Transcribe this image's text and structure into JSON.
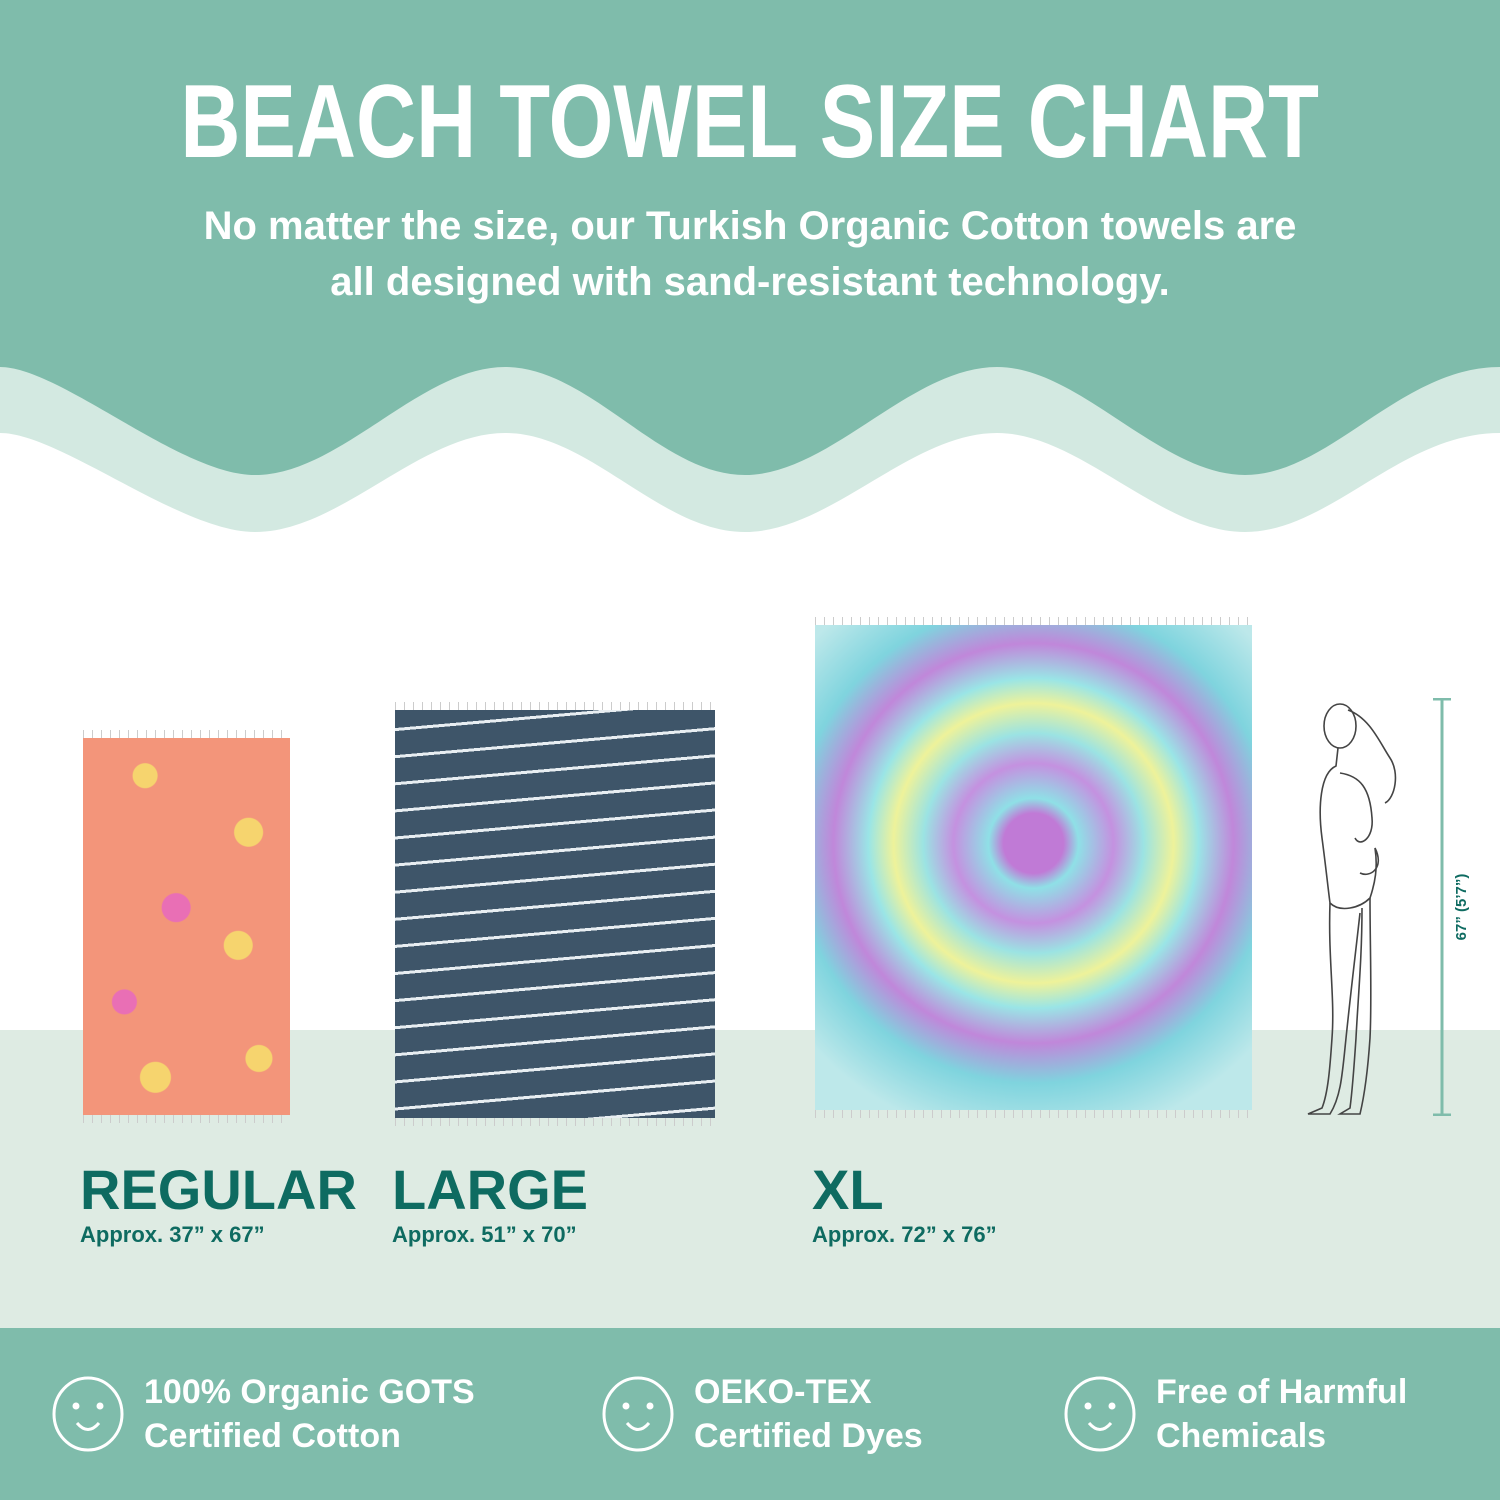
{
  "header": {
    "title": "BEACH TOWEL SIZE CHART",
    "subtitle_line1": "No matter the size, our Turkish Organic Cotton towels are",
    "subtitle_line2": "all designed with sand-resistant technology."
  },
  "sizes": [
    {
      "name": "REGULAR",
      "dimensions": "Approx. 37” x 67”"
    },
    {
      "name": "LARGE",
      "dimensions": "Approx. 51” x 70”"
    },
    {
      "name": "XL",
      "dimensions": "Approx. 72” x 76”"
    }
  ],
  "height_reference": {
    "label": "67” (5’7”)"
  },
  "features": [
    {
      "icon": "smiley-icon",
      "line1": "100% Organic GOTS",
      "line2": "Certified Cotton"
    },
    {
      "icon": "smiley-icon",
      "line1": "OEKO-TEX",
      "line2": "Certified Dyes"
    },
    {
      "icon": "smiley-icon",
      "line1": "Free of Harmful",
      "line2": "Chemicals"
    }
  ],
  "colors": {
    "teal": "#7fbcab",
    "light_teal": "#d3e9e1",
    "band": "#deebe3",
    "dark_teal": "#0e6b61"
  }
}
